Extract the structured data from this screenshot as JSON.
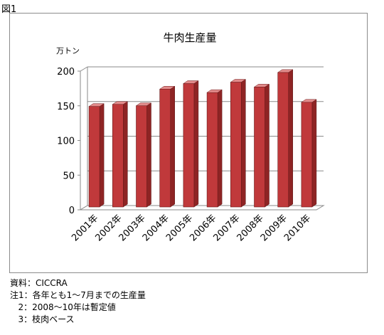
{
  "figure_label": "図1",
  "chart_data": {
    "type": "bar",
    "title": "牛肉生産量",
    "ylabel": "万トン",
    "xlabel": "",
    "categories": [
      "2001年",
      "2002年",
      "2003年",
      "2004年",
      "2005年",
      "2006年",
      "2007年",
      "2008年",
      "2009年",
      "2010年"
    ],
    "values": [
      145,
      148,
      146,
      170,
      178,
      165,
      180,
      173,
      194,
      151
    ],
    "ylim": [
      0,
      200
    ],
    "yticks": [
      0,
      50,
      100,
      150,
      200
    ],
    "grid": true,
    "legend": "none",
    "bar_color": "#c0393b",
    "bar_side_color": "#8e2424",
    "bar_top_color": "#e28b8b"
  },
  "notes": [
    "資料：CICCRA",
    "注1：各年とも1～7月までの生産量",
    "   2：2008～10年は暫定値",
    "   3：枝肉ベース"
  ]
}
